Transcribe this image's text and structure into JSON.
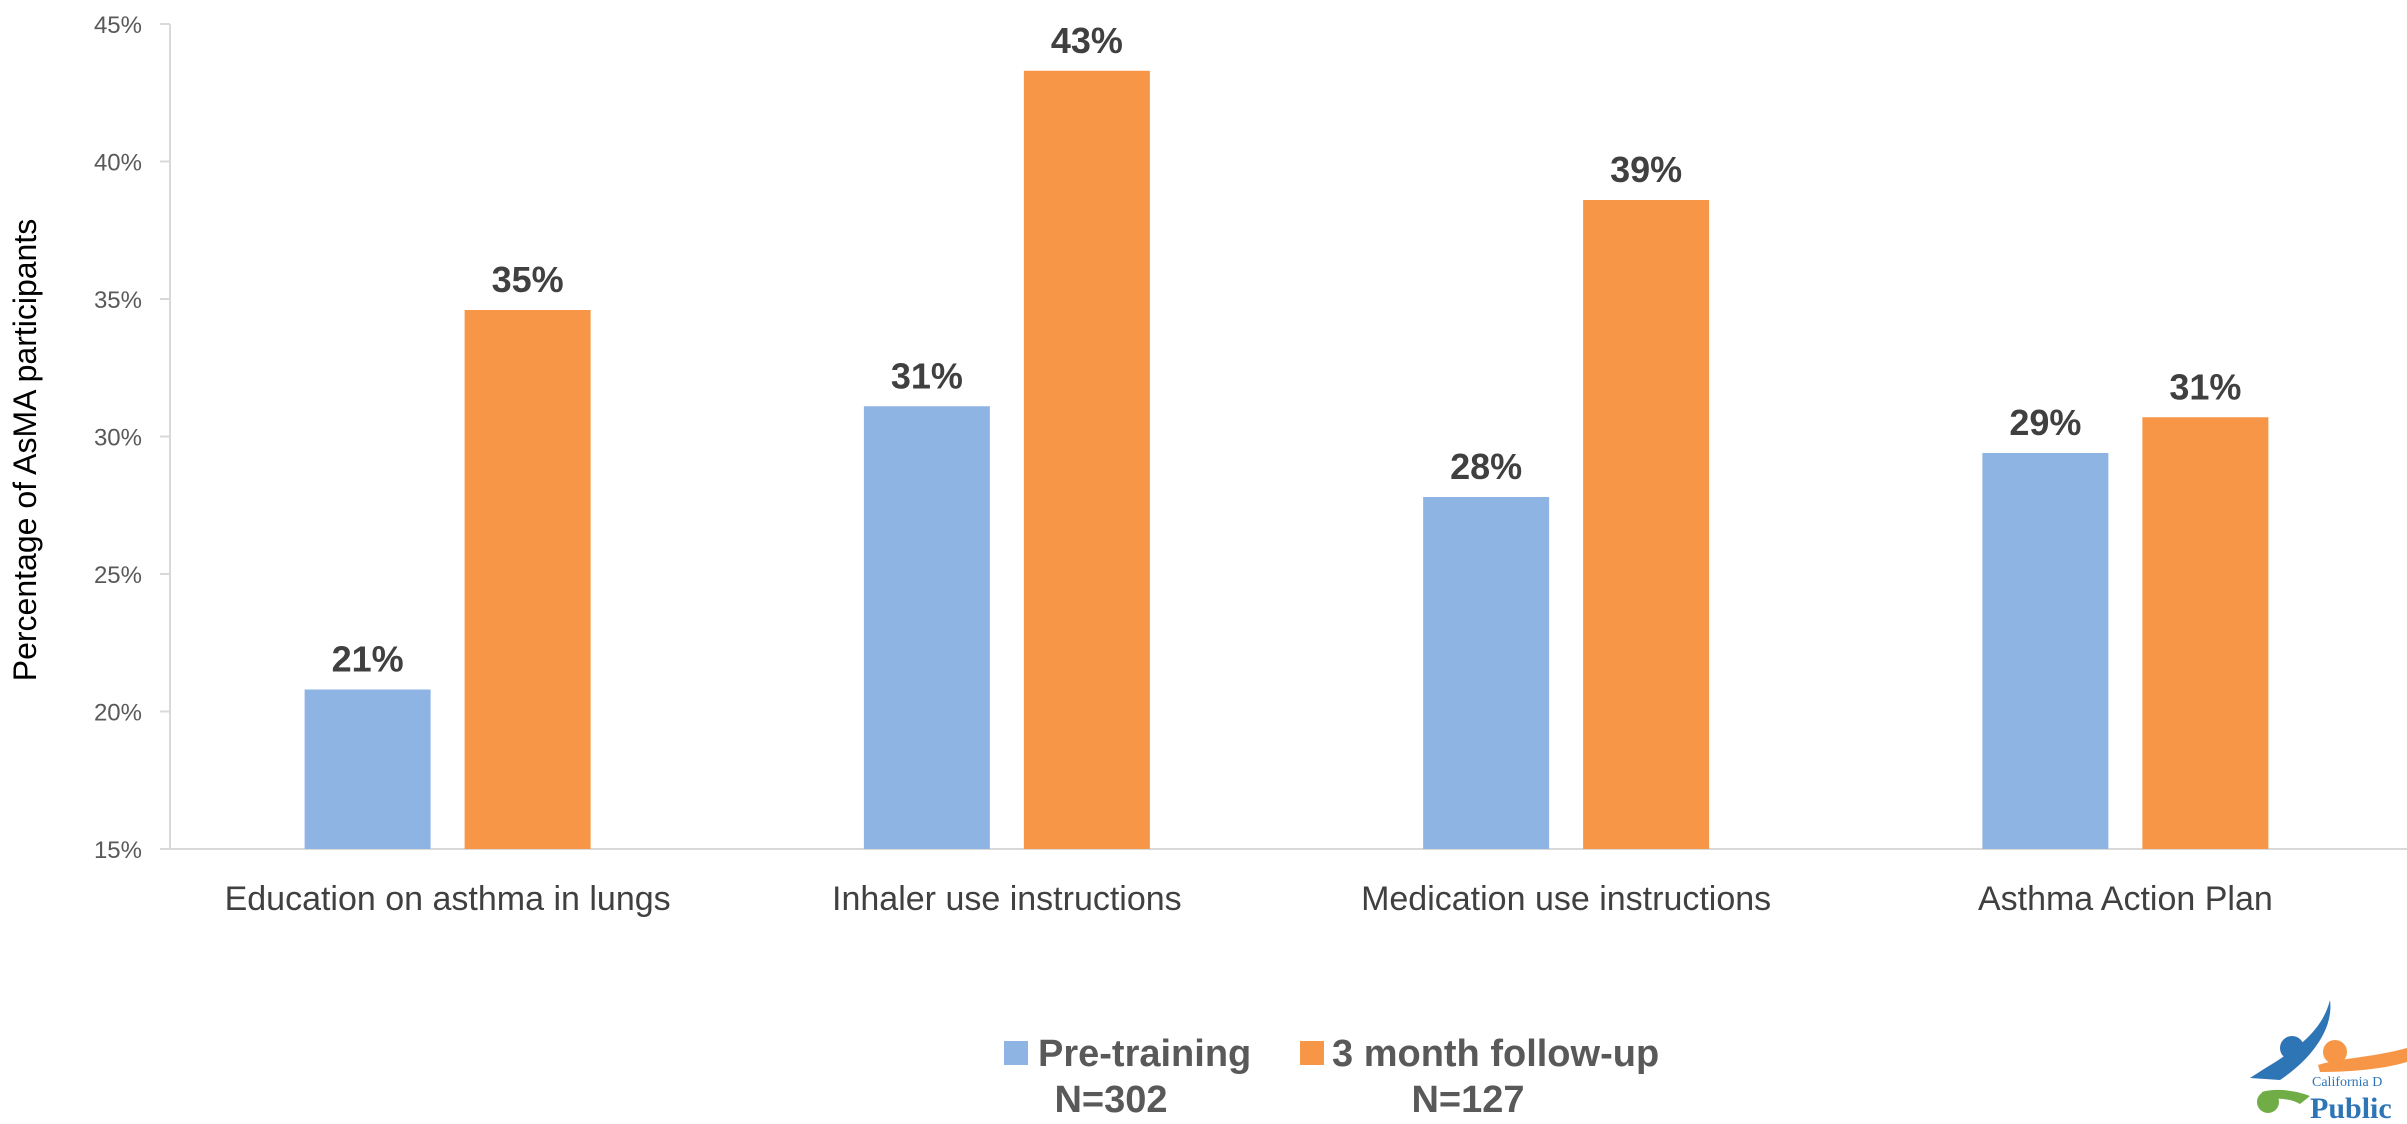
{
  "chart_data": {
    "type": "bar",
    "ylabel": "Percentage of AsMA participants",
    "ylim": [
      15,
      45
    ],
    "y_ticks": [
      {
        "value": 15,
        "label": "15%"
      },
      {
        "value": 20,
        "label": "20%"
      },
      {
        "value": 25,
        "label": "25%"
      },
      {
        "value": 30,
        "label": "30%"
      },
      {
        "value": 35,
        "label": "35%"
      },
      {
        "value": 40,
        "label": "40%"
      },
      {
        "value": 45,
        "label": "45%"
      }
    ],
    "categories": [
      "Education on asthma in lungs",
      "Inhaler use instructions",
      "Medication use instructions",
      "Asthma Action Plan"
    ],
    "series": [
      {
        "name": "Pre-training",
        "n_label": "N=302",
        "color": "#8EB4E3",
        "values": [
          20.8,
          31.1,
          27.8,
          29.4
        ],
        "labels": [
          "21%",
          "31%",
          "28%",
          "29%"
        ]
      },
      {
        "name": "3 month follow-up",
        "n_label": "N=127",
        "color": "#F79646",
        "values": [
          34.6,
          43.3,
          38.6,
          30.7
        ],
        "labels": [
          "35%",
          "43%",
          "39%",
          "31%"
        ]
      }
    ],
    "grid": false,
    "legend_position": "bottom-center"
  },
  "logo": {
    "text_small": "California D",
    "text_large": "Public",
    "icon": "people-figures-logo"
  }
}
